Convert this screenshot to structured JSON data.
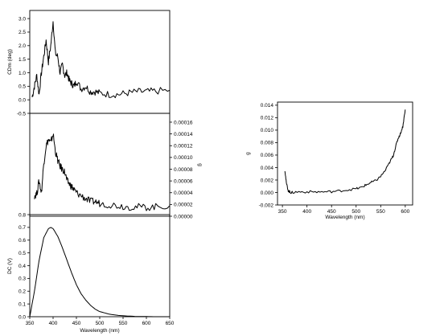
{
  "chart_data": [
    {
      "id": "cd",
      "type": "line",
      "ylabel": "CDm (deg)",
      "y_ticks": [
        "-0.5",
        "0.0",
        "0.5",
        "1.0",
        "1.5",
        "2.0",
        "2.5",
        "3.0"
      ],
      "y_tick_values": [
        -0.5,
        0.0,
        0.5,
        1.0,
        1.5,
        2.0,
        2.5,
        3.0
      ],
      "ylim": [
        -0.5,
        3.3
      ],
      "xlim": [
        350,
        650
      ],
      "x": [
        355,
        360,
        365,
        370,
        375,
        380,
        385,
        390,
        395,
        400,
        405,
        410,
        415,
        420,
        425,
        430,
        435,
        440,
        445,
        450,
        460,
        470,
        480,
        490,
        500,
        520,
        540,
        560,
        580,
        600,
        620,
        650
      ],
      "y": [
        0.1,
        0.5,
        0.9,
        0.2,
        1.0,
        1.6,
        2.2,
        1.4,
        2.0,
        2.9,
        1.7,
        1.6,
        1.0,
        1.3,
        0.9,
        1.0,
        0.7,
        0.6,
        0.5,
        0.7,
        0.4,
        0.5,
        0.3,
        0.3,
        0.25,
        0.2,
        0.2,
        0.25,
        0.3,
        0.3,
        0.32,
        0.35
      ],
      "series": [
        {
          "name": ""
        }
      ]
    },
    {
      "id": "g",
      "type": "line",
      "ylabel": "g",
      "y_ticks": [
        "0.00000",
        "0.00002",
        "0.00004",
        "0.00006",
        "0.00008",
        "0.00010",
        "0.00012",
        "0.00014",
        "0.00016"
      ],
      "y_tick_values": [
        0.0,
        2e-05,
        4e-05,
        6e-05,
        8e-05,
        0.0001,
        0.00012,
        0.00014,
        0.00016
      ],
      "ylim": [
        0.0,
        0.000175
      ],
      "xlim": [
        350,
        650
      ],
      "x": [
        360,
        365,
        370,
        375,
        380,
        385,
        390,
        395,
        400,
        405,
        410,
        415,
        420,
        425,
        430,
        435,
        440,
        445,
        450,
        460,
        470,
        480,
        490,
        500,
        520,
        540,
        560,
        580,
        600,
        620,
        650
      ],
      "y": [
        3.5e-05,
        3.8e-05,
        6e-05,
        4e-05,
        9e-05,
        0.00012,
        0.00013,
        0.000125,
        0.00014,
        0.00011,
        9.5e-05,
        8.5e-05,
        8e-05,
        7.5e-05,
        6e-05,
        5.5e-05,
        5e-05,
        4.5e-05,
        4e-05,
        3.5e-05,
        3e-05,
        2.5e-05,
        2.5e-05,
        2.2e-05,
        2e-05,
        1.8e-05,
        1.6e-05,
        1.6e-05,
        1.5e-05,
        1.6e-05,
        1.8e-05
      ],
      "series": [
        {
          "name": ""
        }
      ]
    },
    {
      "id": "dc",
      "type": "line",
      "ylabel": "DC (V)",
      "xlabel": "Wavelength (nm)",
      "x_ticks": [
        "350",
        "400",
        "450",
        "500",
        "550",
        "600",
        "650"
      ],
      "x_tick_values": [
        350,
        400,
        450,
        500,
        550,
        600,
        650
      ],
      "y_ticks": [
        "0.0",
        "0.1",
        "0.2",
        "0.3",
        "0.4",
        "0.5",
        "0.6",
        "0.7",
        "0.8"
      ],
      "y_tick_values": [
        0.0,
        0.1,
        0.2,
        0.3,
        0.4,
        0.5,
        0.6,
        0.7,
        0.8
      ],
      "ylim": [
        0.0,
        0.8
      ],
      "xlim": [
        350,
        650
      ],
      "x": [
        350,
        360,
        370,
        380,
        390,
        395,
        400,
        410,
        420,
        430,
        440,
        450,
        460,
        470,
        480,
        490,
        500,
        520,
        540,
        560,
        580,
        600,
        620,
        640,
        650
      ],
      "y": [
        0.0,
        0.2,
        0.44,
        0.62,
        0.69,
        0.7,
        0.69,
        0.63,
        0.54,
        0.44,
        0.34,
        0.25,
        0.18,
        0.13,
        0.09,
        0.06,
        0.04,
        0.02,
        0.01,
        0.005,
        0.002,
        0.001,
        0.0,
        0.0,
        0.0
      ],
      "series": [
        {
          "name": ""
        }
      ]
    },
    {
      "id": "right",
      "type": "line",
      "ylabel": "g",
      "xlabel": "Wavelength (nm)",
      "x_ticks": [
        "350",
        "400",
        "450",
        "500",
        "550",
        "600"
      ],
      "x_tick_values": [
        350,
        400,
        450,
        500,
        550,
        600
      ],
      "y_ticks": [
        "-0.002",
        "0.000",
        "0.002",
        "0.004",
        "0.006",
        "0.008",
        "0.010",
        "0.012",
        "0.014"
      ],
      "y_tick_values": [
        -0.002,
        0.0,
        0.002,
        0.004,
        0.006,
        0.008,
        0.01,
        0.012,
        0.014
      ],
      "ylim": [
        -0.002,
        0.0145
      ],
      "xlim": [
        340,
        615
      ],
      "x": [
        355,
        358,
        362,
        366,
        370,
        380,
        400,
        420,
        440,
        460,
        480,
        500,
        510,
        520,
        530,
        540,
        550,
        560,
        570,
        575,
        580,
        585,
        590,
        595,
        600
      ],
      "y": [
        0.0036,
        0.0015,
        0.0003,
        0.0,
        0.0,
        0.0001,
        0.0001,
        0.0001,
        0.0001,
        0.0002,
        0.0004,
        0.0006,
        0.0008,
        0.0012,
        0.0016,
        0.0019,
        0.0026,
        0.0036,
        0.0051,
        0.0058,
        0.0072,
        0.0086,
        0.0094,
        0.0106,
        0.0133
      ],
      "series": [
        {
          "name": ""
        }
      ]
    }
  ]
}
